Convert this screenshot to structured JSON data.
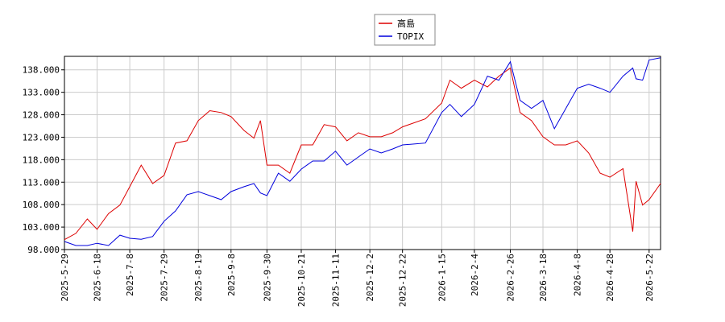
{
  "chart_data": {
    "type": "line",
    "x": [
      "2025-5-29",
      "2025-6-5",
      "2025-6-12",
      "2025-6-18",
      "2025-6-25",
      "2025-7-2",
      "2025-7-8",
      "2025-7-15",
      "2025-7-22",
      "2025-7-29",
      "2025-8-5",
      "2025-8-12",
      "2025-8-19",
      "2025-8-26",
      "2025-9-2",
      "2025-9-8",
      "2025-9-16",
      "2025-9-22",
      "2025-9-26",
      "2025-9-30",
      "2025-10-7",
      "2025-10-14",
      "2025-10-21",
      "2025-10-28",
      "2025-11-4",
      "2025-11-11",
      "2025-11-18",
      "2025-11-25",
      "2025-12-2",
      "2025-12-9",
      "2025-12-16",
      "2025-12-22",
      "2026-1-5",
      "2026-1-15",
      "2026-1-20",
      "2026-1-27",
      "2026-2-4",
      "2026-2-12",
      "2026-2-19",
      "2026-2-26",
      "2026-3-4",
      "2026-3-11",
      "2026-3-18",
      "2026-3-25",
      "2026-4-1",
      "2026-4-8",
      "2026-4-15",
      "2026-4-22",
      "2026-4-28",
      "2026-5-6",
      "2026-5-12",
      "2026-5-14",
      "2026-5-18",
      "2026-5-22",
      "2026-5-29"
    ],
    "series": [
      {
        "name": "高島",
        "color": "#dd0000",
        "values": [
          100.2,
          101.6,
          104.8,
          102.5,
          106,
          107.9,
          112,
          116.8,
          112.7,
          114.5,
          121.7,
          122.2,
          126.7,
          128.9,
          128.5,
          127.6,
          124.5,
          122.8,
          126.7,
          116.8,
          116.8,
          115,
          121.3,
          121.3,
          125.8,
          125.3,
          122.2,
          124,
          123.1,
          123.1,
          124,
          125.3,
          127.1,
          130.6,
          135.7,
          133.9,
          135.7,
          134.2,
          136.6,
          138.4,
          128.5,
          126.7,
          123.1,
          121.3,
          121.3,
          122.2,
          119.5,
          115,
          114.1,
          116,
          102,
          113.2,
          107.9,
          109.1,
          112.7
        ]
      },
      {
        "name": "TOPIX",
        "color": "#0000dd",
        "values": [
          99.8,
          98.9,
          98.9,
          99.4,
          98.9,
          101.2,
          100.5,
          100.3,
          100.9,
          104.3,
          106.6,
          110.2,
          110.9,
          110,
          109.1,
          110.9,
          112,
          112.7,
          110.6,
          110,
          115,
          113.2,
          115.9,
          117.7,
          117.7,
          119.9,
          116.8,
          118.6,
          120.4,
          119.5,
          120.4,
          121.3,
          121.7,
          128.5,
          130.3,
          127.6,
          130.3,
          136.6,
          135.7,
          139.8,
          131.2,
          129.4,
          131.2,
          124.9,
          129.4,
          133.9,
          134.8,
          133.9,
          133,
          136.6,
          138.4,
          136,
          135.7,
          140.2,
          140.7
        ]
      }
    ],
    "xlim": [
      "2025-5-29",
      "2026-5-29"
    ],
    "xticks": [
      "2025-5-29",
      "2025-6-18",
      "2025-7-8",
      "2025-7-29",
      "2025-8-19",
      "2025-9-8",
      "2025-9-30",
      "2025-10-21",
      "2025-11-11",
      "2025-12-2",
      "2025-12-22",
      "2026-1-15",
      "2026-2-4",
      "2026-2-26",
      "2026-3-18",
      "2026-4-8",
      "2026-4-28",
      "2026-5-22"
    ],
    "ylim": [
      98,
      141
    ],
    "yticks": [
      {
        "value": 98,
        "label": "98.000"
      },
      {
        "value": 103,
        "label": "103.000"
      },
      {
        "value": 108,
        "label": "108.000"
      },
      {
        "value": 113,
        "label": "113.000"
      },
      {
        "value": 118,
        "label": "118.000"
      },
      {
        "value": 123,
        "label": "123.000"
      },
      {
        "value": 128,
        "label": "128.000"
      },
      {
        "value": 133,
        "label": "133.000"
      },
      {
        "value": 138,
        "label": "138.000"
      }
    ],
    "grid": true,
    "legend": "top"
  }
}
